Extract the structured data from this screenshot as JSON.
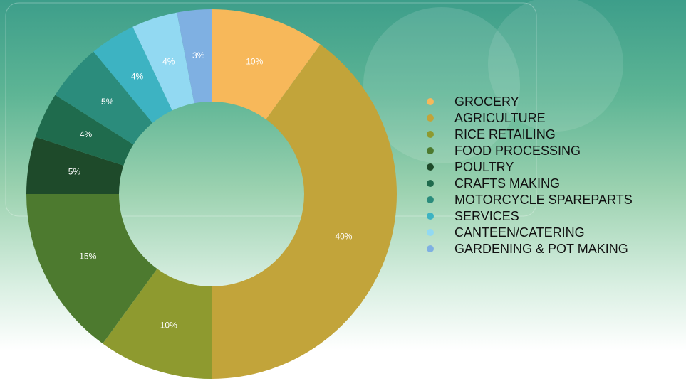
{
  "chart_data": {
    "type": "donut",
    "categories": [
      "GROCERY",
      "AGRICULTURE",
      "RICE RETAILING",
      "FOOD PROCESSING",
      "POULTRY",
      "CRAFTS MAKING",
      "MOTORCYCLE SPAREPARTS",
      "SERVICES",
      "CANTEEN/CATERING",
      "GARDENING & POT MAKING"
    ],
    "values": [
      10,
      40,
      10,
      15,
      5,
      4,
      5,
      4,
      4,
      3
    ],
    "value_labels": [
      "10%",
      "40%",
      "10%",
      "15%",
      "5%",
      "4%",
      "5%",
      "4%",
      "4%",
      "3%"
    ],
    "colors": [
      "#f7b85a",
      "#c2a43a",
      "#8e9a2f",
      "#4d7a2f",
      "#1e4a2a",
      "#1f6b4d",
      "#2b8c7c",
      "#3db3c2",
      "#92d9f2",
      "#7fb0e2"
    ],
    "legend": "right"
  }
}
